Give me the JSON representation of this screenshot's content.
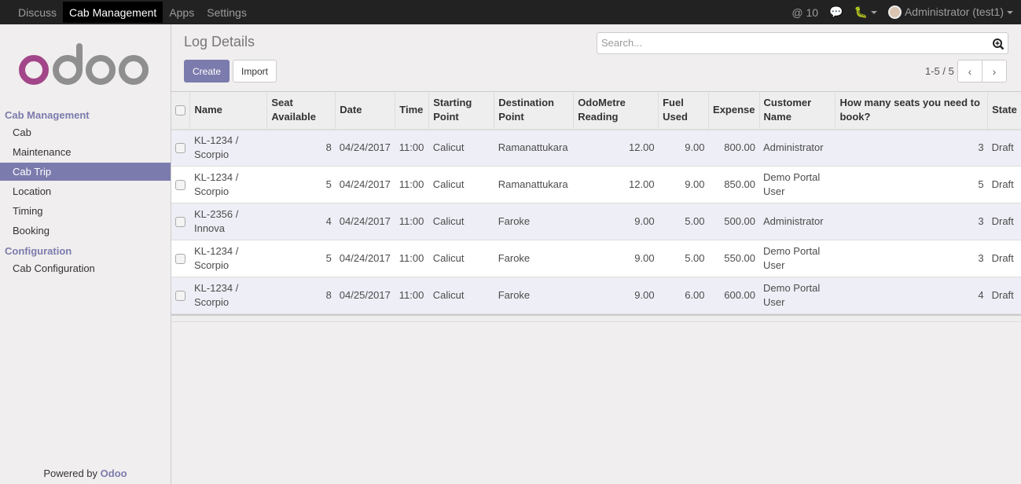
{
  "topbar": {
    "menu": [
      "Discuss",
      "Cab Management",
      "Apps",
      "Settings"
    ],
    "active": 1,
    "mentions": "10",
    "user": "Administrator (test1)"
  },
  "sidebar": {
    "sections": [
      {
        "title": "Cab Management",
        "items": [
          "Cab",
          "Maintenance",
          "Cab Trip",
          "Location",
          "Timing",
          "Booking"
        ]
      },
      {
        "title": "Configuration",
        "items": [
          "Cab Configuration"
        ]
      }
    ],
    "active": "Cab Trip",
    "powered_prefix": "Powered by",
    "powered_brand": "Odoo"
  },
  "header": {
    "title": "Log Details",
    "create": "Create",
    "import": "Import",
    "search_placeholder": "Search...",
    "pager": "1-5 / 5"
  },
  "colors": {
    "accent": "#7c7bad",
    "logo_o": "#a24689",
    "logo_gray": "#8f8f8f"
  },
  "table": {
    "columns": [
      "Name",
      "Seat Available",
      "Date",
      "Time",
      "Starting Point",
      "Destination Point",
      "OdoMetre Reading",
      "Fuel Used",
      "Expense",
      "Customer Name",
      "How many seats you need to book?",
      "State"
    ],
    "rows": [
      [
        "KL-1234 / Scorpio",
        "8",
        "04/24/2017",
        "11:00",
        "Calicut",
        "Ramanattukara",
        "12.00",
        "9.00",
        "800.00",
        "Administrator",
        "3",
        "Draft"
      ],
      [
        "KL-1234 / Scorpio",
        "5",
        "04/24/2017",
        "11:00",
        "Calicut",
        "Ramanattukara",
        "12.00",
        "9.00",
        "850.00",
        "Demo Portal User",
        "5",
        "Draft"
      ],
      [
        "KL-2356 / Innova",
        "4",
        "04/24/2017",
        "11:00",
        "Calicut",
        "Faroke",
        "9.00",
        "5.00",
        "500.00",
        "Administrator",
        "3",
        "Draft"
      ],
      [
        "KL-1234 / Scorpio",
        "5",
        "04/24/2017",
        "11:00",
        "Calicut",
        "Faroke",
        "9.00",
        "5.00",
        "550.00",
        "Demo Portal User",
        "3",
        "Draft"
      ],
      [
        "KL-1234 / Scorpio",
        "8",
        "04/25/2017",
        "11:00",
        "Calicut",
        "Faroke",
        "9.00",
        "6.00",
        "600.00",
        "Demo Portal User",
        "4",
        "Draft"
      ]
    ]
  }
}
